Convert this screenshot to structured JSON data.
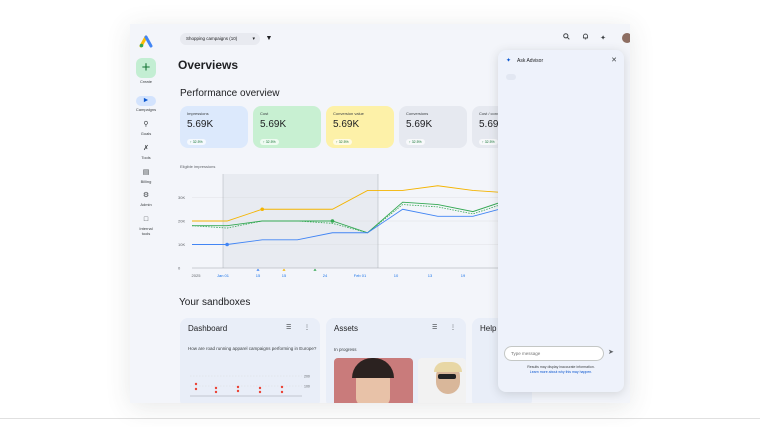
{
  "topbar": {
    "campaign_selector": "Shopping campaigns (10)"
  },
  "nav": {
    "create_label": "Create",
    "items": [
      {
        "label": "Campaigns",
        "icon": "megaphone-icon",
        "active": true
      },
      {
        "label": "Goals",
        "icon": "trophy-icon"
      },
      {
        "label": "Tools",
        "icon": "tools-icon"
      },
      {
        "label": "Billing",
        "icon": "credit-card-icon"
      },
      {
        "label": "Admin",
        "icon": "gear-icon"
      },
      {
        "label": "Internal tools",
        "icon": "lock-icon"
      }
    ]
  },
  "main": {
    "page_title": "Overviews",
    "section_title": "Performance overview",
    "cards": [
      {
        "label": "Impressions",
        "value": "5.69K",
        "badge": "↑ 32.5%",
        "color": "#dce9fc"
      },
      {
        "label": "Cost",
        "value": "5.69K",
        "badge": "↑ 32.5%",
        "color": "#c8f0d2"
      },
      {
        "label": "Conversion value",
        "value": "5.69K",
        "badge": "↑ 32.5%",
        "color": "#fdf1a8"
      },
      {
        "label": "Conversions",
        "value": "5.69K",
        "badge": "↑ 32.5%",
        "color": "#e6e9f0"
      },
      {
        "label": "Cost / conv.",
        "value": "5.69",
        "badge": "↑ 32.5%",
        "color": "#e6e9f0"
      }
    ],
    "chart_title": "Eligible impressions",
    "sandboxes_title": "Your sandboxes",
    "sandboxes": [
      {
        "title": "Dashboard",
        "question": "How are road running apparel campaigns performing in Europe?"
      },
      {
        "title": "Assets",
        "status": "In progress"
      },
      {
        "title": "Help"
      }
    ]
  },
  "chart_data": {
    "type": "line",
    "title": "Eligible impressions",
    "x_ticks": [
      "2025",
      "Jan 01",
      "15",
      "15",
      "24",
      "Feb 01",
      "10",
      "13",
      "19"
    ],
    "y_ticks": [
      "0",
      "10K",
      "20K",
      "30K"
    ],
    "ylim": [
      0,
      40
    ],
    "series": [
      {
        "color": "#f4b400",
        "values": [
          20,
          20,
          25,
          25,
          25,
          33,
          33,
          35,
          33,
          32
        ]
      },
      {
        "color": "#34a853",
        "values": [
          18,
          18,
          20,
          20,
          20,
          15,
          28,
          27,
          24,
          29
        ]
      },
      {
        "color": "#4285f4",
        "values": [
          10,
          10,
          12,
          12,
          15,
          15,
          25,
          22,
          22,
          26
        ]
      }
    ],
    "reference_series": {
      "color": "#34a853",
      "dashed": true,
      "values": [
        18,
        17,
        20,
        20,
        19,
        15,
        27,
        26,
        23,
        28
      ]
    },
    "grid": true
  },
  "advisor": {
    "title": "Ask Advisor",
    "input_placeholder": "Type message",
    "note_line1": "Results may display inaccurate information.",
    "note_line2": "Learn more about why this may happen."
  }
}
